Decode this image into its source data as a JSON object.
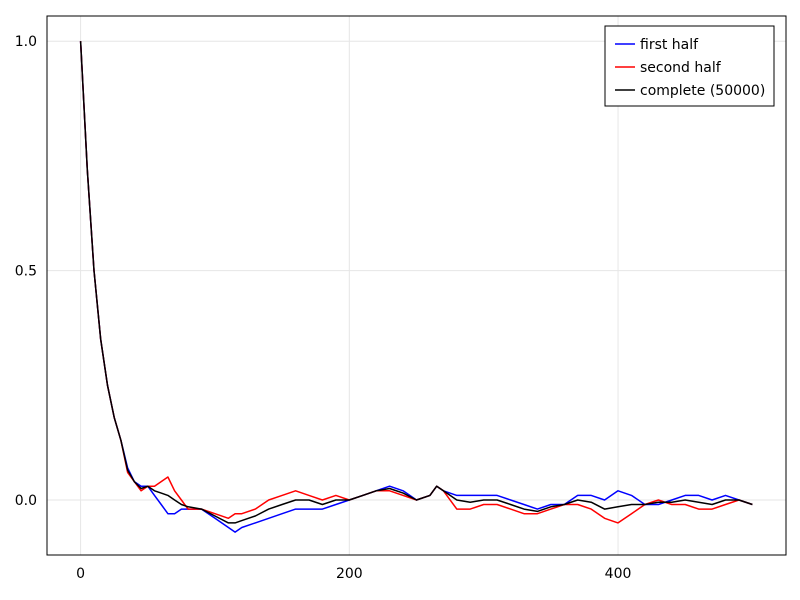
{
  "chart_data": {
    "type": "line",
    "title": "",
    "xlabel": "",
    "ylabel": "",
    "xlim": [
      -25,
      525
    ],
    "ylim": [
      -0.12,
      1.055
    ],
    "x_ticks": [
      0,
      200,
      400
    ],
    "x_tick_labels": [
      "0",
      "200",
      "400"
    ],
    "y_ticks": [
      0.0,
      0.5,
      1.0
    ],
    "y_tick_labels": [
      "0.0",
      "0.5",
      "1.0"
    ],
    "grid": true,
    "legend_position": "top-right",
    "series": [
      {
        "name": "first half",
        "color": "#0000ff",
        "x": [
          0,
          5,
          10,
          15,
          20,
          25,
          30,
          35,
          40,
          45,
          50,
          55,
          60,
          65,
          70,
          75,
          80,
          90,
          100,
          110,
          115,
          120,
          130,
          140,
          150,
          160,
          170,
          180,
          190,
          200,
          210,
          220,
          230,
          240,
          250,
          260,
          265,
          270,
          280,
          290,
          300,
          310,
          320,
          330,
          340,
          350,
          360,
          370,
          380,
          390,
          400,
          410,
          420,
          430,
          440,
          450,
          460,
          470,
          480,
          490,
          500
        ],
        "values": [
          1.0,
          0.72,
          0.5,
          0.35,
          0.25,
          0.18,
          0.13,
          0.07,
          0.04,
          0.03,
          0.03,
          0.01,
          -0.01,
          -0.03,
          -0.03,
          -0.02,
          -0.02,
          -0.02,
          -0.04,
          -0.06,
          -0.07,
          -0.06,
          -0.05,
          -0.04,
          -0.03,
          -0.02,
          -0.02,
          -0.02,
          -0.01,
          0.0,
          0.01,
          0.02,
          0.03,
          0.02,
          0.0,
          0.01,
          0.03,
          0.02,
          0.01,
          0.01,
          0.01,
          0.01,
          0.0,
          -0.01,
          -0.02,
          -0.01,
          -0.01,
          0.01,
          0.01,
          0.0,
          0.02,
          0.01,
          -0.01,
          -0.01,
          0.0,
          0.01,
          0.01,
          0.0,
          0.01,
          0.0,
          -0.01
        ]
      },
      {
        "name": "second half",
        "color": "#ff0000",
        "x": [
          0,
          5,
          10,
          15,
          20,
          25,
          30,
          35,
          40,
          45,
          50,
          55,
          60,
          65,
          70,
          75,
          80,
          90,
          100,
          110,
          115,
          120,
          130,
          140,
          150,
          160,
          170,
          180,
          190,
          200,
          210,
          220,
          230,
          240,
          250,
          260,
          265,
          270,
          280,
          290,
          300,
          310,
          320,
          330,
          340,
          350,
          360,
          370,
          380,
          390,
          400,
          410,
          420,
          430,
          440,
          450,
          460,
          470,
          480,
          490,
          500
        ],
        "values": [
          1.0,
          0.72,
          0.5,
          0.35,
          0.25,
          0.18,
          0.13,
          0.06,
          0.04,
          0.02,
          0.03,
          0.03,
          0.04,
          0.05,
          0.02,
          0.0,
          -0.02,
          -0.02,
          -0.03,
          -0.04,
          -0.03,
          -0.03,
          -0.02,
          0.0,
          0.01,
          0.02,
          0.01,
          0.0,
          0.01,
          0.0,
          0.01,
          0.02,
          0.02,
          0.01,
          0.0,
          0.01,
          0.03,
          0.02,
          -0.02,
          -0.02,
          -0.01,
          -0.01,
          -0.02,
          -0.03,
          -0.03,
          -0.02,
          -0.01,
          -0.01,
          -0.02,
          -0.04,
          -0.05,
          -0.03,
          -0.01,
          0.0,
          -0.01,
          -0.01,
          -0.02,
          -0.02,
          -0.01,
          0.0,
          -0.01
        ]
      },
      {
        "name": "complete (50000)",
        "color": "#000000",
        "x": [
          0,
          5,
          10,
          15,
          20,
          25,
          30,
          35,
          40,
          45,
          50,
          55,
          60,
          65,
          70,
          75,
          80,
          90,
          100,
          110,
          115,
          120,
          130,
          140,
          150,
          160,
          170,
          180,
          190,
          200,
          210,
          220,
          230,
          240,
          250,
          260,
          265,
          270,
          280,
          290,
          300,
          310,
          320,
          330,
          340,
          350,
          360,
          370,
          380,
          390,
          400,
          410,
          420,
          430,
          440,
          450,
          460,
          470,
          480,
          490,
          500
        ],
        "values": [
          1.0,
          0.72,
          0.5,
          0.35,
          0.25,
          0.18,
          0.13,
          0.065,
          0.04,
          0.025,
          0.03,
          0.02,
          0.015,
          0.01,
          0.0,
          -0.01,
          -0.015,
          -0.02,
          -0.035,
          -0.05,
          -0.05,
          -0.045,
          -0.035,
          -0.02,
          -0.01,
          0.0,
          0.0,
          -0.01,
          0.0,
          0.0,
          0.01,
          0.02,
          0.025,
          0.015,
          0.0,
          0.01,
          0.03,
          0.02,
          0.0,
          -0.005,
          0.0,
          0.0,
          -0.01,
          -0.02,
          -0.025,
          -0.015,
          -0.01,
          0.0,
          -0.005,
          -0.02,
          -0.015,
          -0.01,
          -0.01,
          -0.005,
          -0.005,
          0.0,
          -0.005,
          -0.01,
          0.0,
          0.0,
          -0.01
        ]
      }
    ]
  }
}
